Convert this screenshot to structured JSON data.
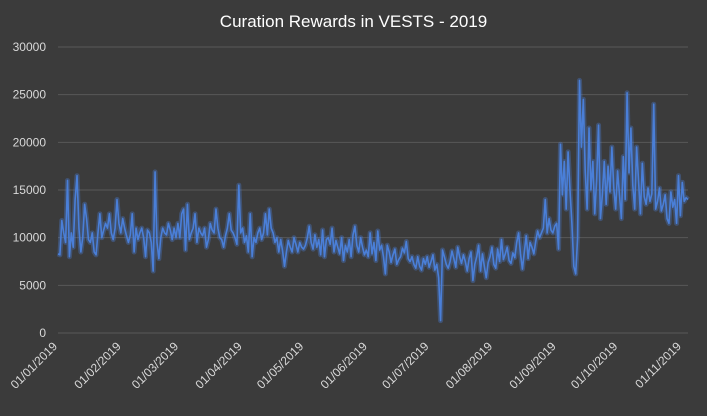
{
  "chart_data": {
    "type": "line",
    "title": "Curation Rewards in VESTS - 2019",
    "xlabel": "",
    "ylabel": "",
    "ylim": [
      0,
      30000
    ],
    "yticks": [
      0,
      5000,
      10000,
      15000,
      20000,
      25000,
      30000
    ],
    "x_start": "01/01/2019",
    "x_end": "04/11/2019",
    "xticks": [
      "01/01/2019",
      "01/02/2019",
      "01/03/2019",
      "01/04/2019",
      "01/05/2019",
      "01/06/2019",
      "01/07/2019",
      "01/08/2019",
      "01/09/2019",
      "01/10/2019",
      "01/11/2019"
    ],
    "grid": true,
    "legend": "none",
    "line_color": "#4a7fd8",
    "series": [
      {
        "values": [
          8300,
          8200,
          11800,
          10500,
          9500,
          16000,
          8000,
          10500,
          9000,
          14000,
          16500,
          11000,
          8500,
          10000,
          13500,
          12000,
          9800,
          9500,
          10500,
          8500,
          8200,
          10500,
          12500,
          10000,
          10800,
          11500,
          11000,
          12500,
          10500,
          9800,
          11000,
          14000,
          11500,
          10500,
          12000,
          11000,
          10200,
          9500,
          10300,
          12500,
          8500,
          11000,
          9800,
          10500,
          11000,
          10000,
          8000,
          10800,
          10500,
          9500,
          6500,
          16900,
          9500,
          7800,
          10000,
          11000,
          10500,
          10300,
          11500,
          10800,
          9800,
          11000,
          10000,
          11500,
          10000,
          12500,
          13000,
          8700,
          13500,
          9800,
          10500,
          11000,
          12500,
          9500,
          11000,
          10500,
          10200,
          11000,
          9000,
          9800,
          11500,
          10800,
          10500,
          13000,
          11000,
          10000,
          9800,
          9000,
          10200,
          11000,
          12500,
          10800,
          10500,
          10000,
          9300,
          15500,
          10500,
          11000,
          9500,
          10200,
          8500,
          12500,
          8000,
          10000,
          9500,
          10500,
          11000,
          9800,
          10500,
          12500,
          10300,
          13000,
          11000,
          10500,
          9500,
          10000,
          8500,
          9800,
          8600,
          7000,
          8500,
          9700,
          9000,
          8500,
          10000,
          9300,
          8500,
          9500,
          9000,
          8800,
          9200,
          10000,
          11200,
          9500,
          8800,
          10300,
          9000,
          9800,
          8200,
          10800,
          8000,
          9800,
          10000,
          9300,
          11000,
          8500,
          9700,
          9000,
          8300,
          10000,
          7600,
          9200,
          8500,
          9800,
          8000,
          10300,
          11200,
          9200,
          8500,
          10000,
          9000,
          8200,
          8700,
          8000,
          10500,
          8300,
          9500,
          7600,
          10700,
          8700,
          9200,
          8000,
          6200,
          9200,
          8500,
          7400,
          8200,
          8800,
          7200,
          7700,
          8000,
          8900,
          8400,
          9600,
          7800,
          7500,
          8000,
          7200,
          6800,
          8000,
          7000,
          6600,
          7800,
          7200,
          8000,
          6900,
          7500,
          8200,
          6600,
          7200,
          5800,
          1300,
          8700,
          8000,
          7200,
          6800,
          7500,
          8600,
          7800,
          6900,
          9000,
          8000,
          7300,
          8200,
          7500,
          6500,
          7800,
          8500,
          5500,
          7200,
          8000,
          9200,
          6500,
          8300,
          7000,
          5800,
          7400,
          8000,
          9000,
          7200,
          6800,
          8800,
          7500,
          9800,
          7700,
          8300,
          9000,
          7600,
          7300,
          8400,
          7900,
          9500,
          10500,
          8300,
          6700,
          8500,
          10200,
          7800,
          9500,
          9000,
          8300,
          9600,
          10700,
          10000,
          10500,
          11000,
          14000,
          10500,
          12000,
          10800,
          10500,
          11200,
          11500,
          8800,
          19800,
          14500,
          18000,
          13000,
          19000,
          15000,
          11500,
          7000,
          6200,
          10000,
          26500,
          19500,
          24500,
          17000,
          13000,
          21500,
          15000,
          18000,
          12500,
          16000,
          21800,
          12000,
          14500,
          18000,
          13500,
          17500,
          14800,
          19500,
          15200,
          13000,
          17000,
          14500,
          12000,
          18500,
          14000,
          25200,
          16800,
          21500,
          15500,
          13000,
          19500,
          16000,
          12500,
          17800,
          14300,
          13500,
          15200,
          13800,
          14600,
          24000,
          13000,
          13800,
          15200,
          12800,
          13500,
          14500,
          12000,
          11500,
          14800,
          13200,
          14000,
          11500,
          16500,
          12300,
          15800,
          13800,
          14200,
          14000
        ]
      }
    ]
  }
}
